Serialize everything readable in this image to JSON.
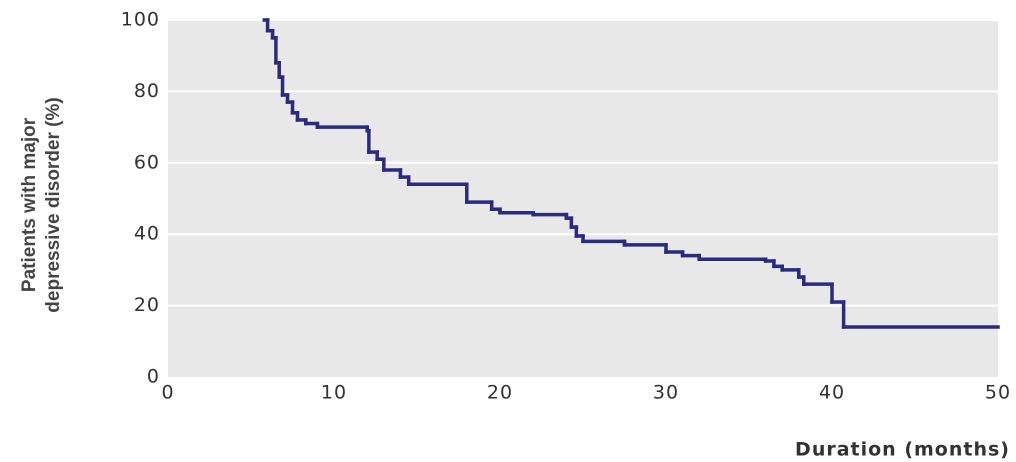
{
  "chart_data": {
    "type": "step",
    "xlabel": "Duration (months)",
    "ylabel": [
      "Patients with major",
      "depressive disorder (%)"
    ],
    "x": [
      5.8,
      6,
      6.3,
      6.5,
      6.7,
      6.9,
      7.2,
      7.5,
      7.8,
      8.3,
      9,
      12,
      12.1,
      12.6,
      13,
      14,
      14.5,
      18,
      19.5,
      20,
      22,
      24,
      24.3,
      24.6,
      25,
      27.5,
      30,
      31,
      32,
      36,
      36.5,
      37,
      38,
      38.3,
      40,
      40.7
    ],
    "values": [
      100,
      97,
      95,
      88,
      84,
      79,
      77,
      74,
      72,
      71,
      70,
      69,
      63,
      61,
      58,
      56,
      54,
      49,
      47,
      46,
      45.5,
      44.5,
      42,
      39.5,
      38,
      37,
      35,
      34,
      33,
      32.5,
      31,
      30,
      28,
      26,
      21,
      14
    ],
    "color": "#2a2a7e",
    "xlim": [
      0,
      50
    ],
    "xticks": [
      0,
      10,
      20,
      30,
      40,
      50
    ],
    "ylim": [
      0,
      100
    ],
    "yticks": [
      0,
      20,
      40,
      60,
      80,
      100
    ],
    "grid": true
  }
}
